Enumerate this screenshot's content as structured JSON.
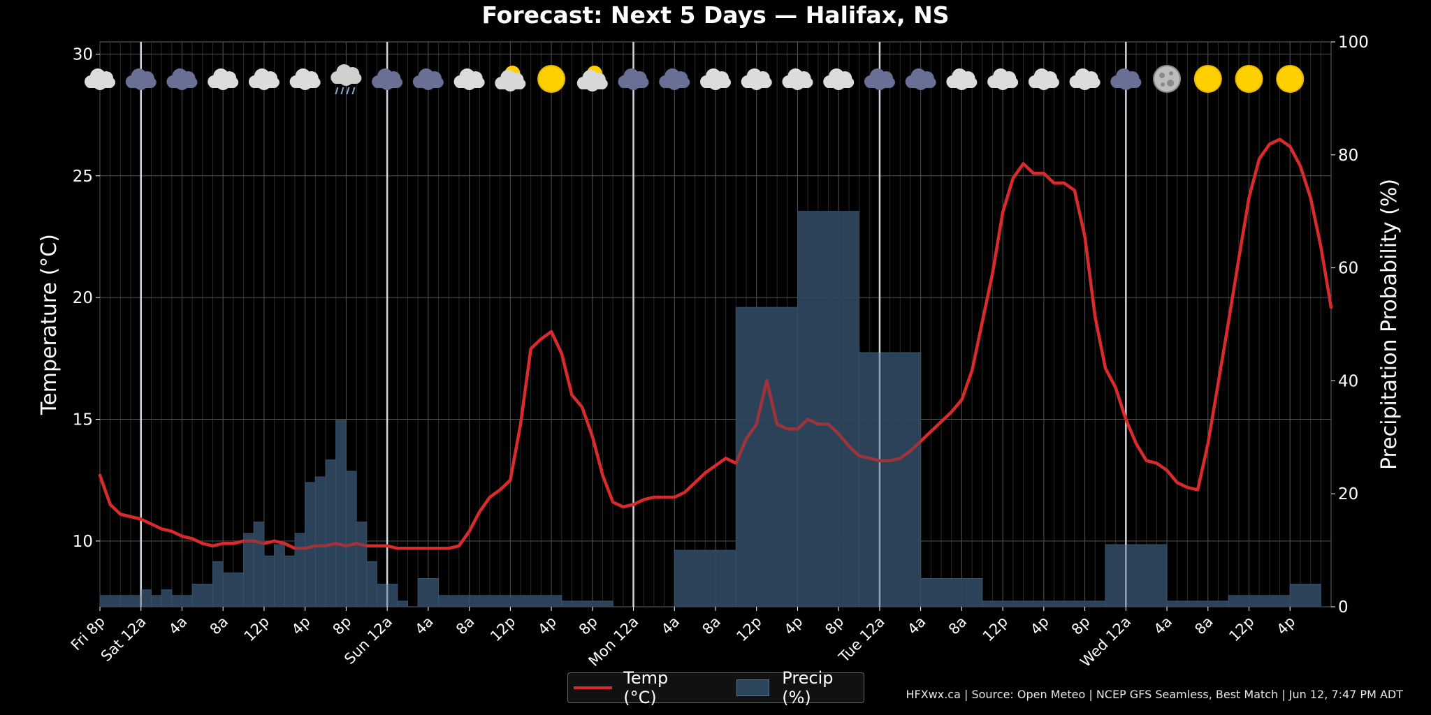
{
  "title": "Forecast: Next 5 Days — Halifax, NS",
  "footer": "HFXwx.ca | Source: Open Meteo | NCEP GFS Seamless, Best Match | Jun 12, 7:47 PM ADT",
  "legend": {
    "temp": "Temp (°C)",
    "precip": "Precip (%)"
  },
  "colors": {
    "temp": "#d92b2b",
    "precip": "#2d455c",
    "grid": "#444444"
  },
  "chart_data": {
    "type": "bar+line",
    "title": "Forecast: Next 5 Days — Halifax, NS",
    "ylabel_left": "Temperature (°C)",
    "ylabel_right": "Precipitation Probability (%)",
    "ylim_left": [
      7.3,
      30.5
    ],
    "ylim_right": [
      0,
      100
    ],
    "yticks_left": [
      "10",
      "15",
      "20",
      "25",
      "30"
    ],
    "yticks_right": [
      "0",
      "20",
      "40",
      "60",
      "80",
      "100"
    ],
    "x_start_hour": 0,
    "x_hours": 120,
    "x_start_label": "Fri 8p",
    "xticks": [
      {
        "h": 0,
        "label": "Fri 8p"
      },
      {
        "h": 4,
        "label": "Sat 12a"
      },
      {
        "h": 8,
        "label": "4a"
      },
      {
        "h": 12,
        "label": "8a"
      },
      {
        "h": 16,
        "label": "12p"
      },
      {
        "h": 20,
        "label": "4p"
      },
      {
        "h": 24,
        "label": "8p"
      },
      {
        "h": 28,
        "label": "Sun 12a"
      },
      {
        "h": 32,
        "label": "4a"
      },
      {
        "h": 36,
        "label": "8a"
      },
      {
        "h": 40,
        "label": "12p"
      },
      {
        "h": 44,
        "label": "4p"
      },
      {
        "h": 48,
        "label": "8p"
      },
      {
        "h": 52,
        "label": "Mon 12a"
      },
      {
        "h": 56,
        "label": "4a"
      },
      {
        "h": 60,
        "label": "8a"
      },
      {
        "h": 64,
        "label": "12p"
      },
      {
        "h": 68,
        "label": "4p"
      },
      {
        "h": 72,
        "label": "8p"
      },
      {
        "h": 76,
        "label": "Tue 12a"
      },
      {
        "h": 80,
        "label": "4a"
      },
      {
        "h": 84,
        "label": "8a"
      },
      {
        "h": 88,
        "label": "12p"
      },
      {
        "h": 92,
        "label": "4p"
      },
      {
        "h": 96,
        "label": "8p"
      },
      {
        "h": 100,
        "label": "Wed 12a"
      },
      {
        "h": 104,
        "label": "4a"
      },
      {
        "h": 108,
        "label": "8a"
      },
      {
        "h": 112,
        "label": "12p"
      },
      {
        "h": 116,
        "label": "4p"
      }
    ],
    "day_boundaries": [
      4,
      28,
      52,
      76,
      100
    ],
    "temperature": [
      [
        0,
        12.7
      ],
      [
        1,
        11.5
      ],
      [
        2,
        11.1
      ],
      [
        3,
        11.0
      ],
      [
        4,
        10.9
      ],
      [
        5,
        10.7
      ],
      [
        6,
        10.5
      ],
      [
        7,
        10.4
      ],
      [
        8,
        10.2
      ],
      [
        9,
        10.1
      ],
      [
        10,
        9.9
      ],
      [
        11,
        9.8
      ],
      [
        12,
        9.9
      ],
      [
        13,
        9.9
      ],
      [
        14,
        10.0
      ],
      [
        15,
        10.0
      ],
      [
        16,
        9.9
      ],
      [
        17,
        10.0
      ],
      [
        18,
        9.9
      ],
      [
        19,
        9.7
      ],
      [
        20,
        9.7
      ],
      [
        21,
        9.8
      ],
      [
        22,
        9.8
      ],
      [
        23,
        9.9
      ],
      [
        24,
        9.8
      ],
      [
        25,
        9.9
      ],
      [
        26,
        9.8
      ],
      [
        27,
        9.8
      ],
      [
        28,
        9.8
      ],
      [
        29,
        9.7
      ],
      [
        30,
        9.7
      ],
      [
        31,
        9.7
      ],
      [
        32,
        9.7
      ],
      [
        33,
        9.7
      ],
      [
        34,
        9.7
      ],
      [
        35,
        9.8
      ],
      [
        36,
        10.4
      ],
      [
        37,
        11.2
      ],
      [
        38,
        11.8
      ],
      [
        39,
        12.1
      ],
      [
        40,
        12.5
      ],
      [
        41,
        14.8
      ],
      [
        42,
        17.9
      ],
      [
        43,
        18.3
      ],
      [
        44,
        18.6
      ],
      [
        45,
        17.7
      ],
      [
        46,
        16.0
      ],
      [
        47,
        15.5
      ],
      [
        48,
        14.3
      ],
      [
        49,
        12.7
      ],
      [
        50,
        11.6
      ],
      [
        51,
        11.4
      ],
      [
        52,
        11.5
      ],
      [
        53,
        11.7
      ],
      [
        54,
        11.8
      ],
      [
        55,
        11.8
      ],
      [
        56,
        11.8
      ],
      [
        57,
        12.0
      ],
      [
        58,
        12.4
      ],
      [
        59,
        12.8
      ],
      [
        60,
        13.1
      ],
      [
        61,
        13.4
      ],
      [
        62,
        13.2
      ],
      [
        63,
        14.2
      ],
      [
        64,
        14.8
      ],
      [
        65,
        16.6
      ],
      [
        66,
        14.8
      ],
      [
        67,
        14.6
      ],
      [
        68,
        14.6
      ],
      [
        69,
        15.0
      ],
      [
        70,
        14.8
      ],
      [
        71,
        14.8
      ],
      [
        72,
        14.4
      ],
      [
        73,
        13.9
      ],
      [
        74,
        13.5
      ],
      [
        75,
        13.4
      ],
      [
        76,
        13.3
      ],
      [
        77,
        13.3
      ],
      [
        78,
        13.4
      ],
      [
        79,
        13.7
      ],
      [
        80,
        14.1
      ],
      [
        81,
        14.5
      ],
      [
        82,
        14.9
      ],
      [
        83,
        15.3
      ],
      [
        84,
        15.8
      ],
      [
        85,
        17.0
      ],
      [
        86,
        19.0
      ],
      [
        87,
        21.0
      ],
      [
        88,
        23.5
      ],
      [
        89,
        24.9
      ],
      [
        90,
        25.5
      ],
      [
        91,
        25.1
      ],
      [
        92,
        25.1
      ],
      [
        93,
        24.7
      ],
      [
        94,
        24.7
      ],
      [
        95,
        24.4
      ],
      [
        96,
        22.5
      ],
      [
        97,
        19.2
      ],
      [
        98,
        17.1
      ],
      [
        99,
        16.3
      ],
      [
        100,
        15.0
      ],
      [
        101,
        14.0
      ],
      [
        102,
        13.3
      ],
      [
        103,
        13.2
      ],
      [
        104,
        12.9
      ],
      [
        105,
        12.4
      ],
      [
        106,
        12.2
      ],
      [
        107,
        12.1
      ],
      [
        108,
        14.0
      ],
      [
        109,
        16.5
      ],
      [
        110,
        19.0
      ],
      [
        111,
        21.6
      ],
      [
        112,
        24.1
      ],
      [
        113,
        25.7
      ],
      [
        114,
        26.3
      ],
      [
        115,
        26.5
      ],
      [
        116,
        26.2
      ],
      [
        117,
        25.4
      ],
      [
        118,
        24.1
      ],
      [
        119,
        22.1
      ],
      [
        120,
        19.6
      ]
    ],
    "precipitation": [
      [
        0,
        2,
        2
      ],
      [
        2,
        4,
        2
      ],
      [
        4,
        5,
        3
      ],
      [
        5,
        6,
        2
      ],
      [
        6,
        7,
        3
      ],
      [
        7,
        9,
        2
      ],
      [
        9,
        11,
        4
      ],
      [
        11,
        12,
        8
      ],
      [
        12,
        14,
        6
      ],
      [
        14,
        15,
        13
      ],
      [
        15,
        16,
        15
      ],
      [
        16,
        17,
        9
      ],
      [
        17,
        18,
        11
      ],
      [
        18,
        19,
        9
      ],
      [
        19,
        20,
        13
      ],
      [
        20,
        21,
        22
      ],
      [
        21,
        22,
        23
      ],
      [
        22,
        23,
        26
      ],
      [
        23,
        24,
        33
      ],
      [
        24,
        25,
        24
      ],
      [
        25,
        26,
        15
      ],
      [
        26,
        27,
        8
      ],
      [
        27,
        28,
        4
      ],
      [
        28,
        29,
        4
      ],
      [
        29,
        30,
        1
      ],
      [
        30,
        31,
        0
      ],
      [
        31,
        33,
        5
      ],
      [
        33,
        36,
        2
      ],
      [
        36,
        45,
        2
      ],
      [
        45,
        50,
        1
      ],
      [
        50,
        56,
        0
      ],
      [
        56,
        62,
        10
      ],
      [
        62,
        68,
        53
      ],
      [
        68,
        74,
        70
      ],
      [
        74,
        80,
        45
      ],
      [
        80,
        86,
        5
      ],
      [
        86,
        98,
        1
      ],
      [
        98,
        104,
        11
      ],
      [
        104,
        110,
        1
      ],
      [
        110,
        116,
        2
      ],
      [
        116,
        119,
        4
      ]
    ],
    "weather_icons": [
      {
        "h": 0,
        "icon": "cloud-icon"
      },
      {
        "h": 4,
        "icon": "dark-cloud-icon"
      },
      {
        "h": 8,
        "icon": "dark-cloud-icon"
      },
      {
        "h": 12,
        "icon": "cloud-icon"
      },
      {
        "h": 16,
        "icon": "cloud-icon"
      },
      {
        "h": 20,
        "icon": "cloud-icon"
      },
      {
        "h": 24,
        "icon": "rain-cloud-icon"
      },
      {
        "h": 28,
        "icon": "dark-cloud-icon"
      },
      {
        "h": 32,
        "icon": "dark-cloud-icon"
      },
      {
        "h": 36,
        "icon": "cloud-icon"
      },
      {
        "h": 40,
        "icon": "partly-sunny-icon"
      },
      {
        "h": 44,
        "icon": "sun-icon"
      },
      {
        "h": 48,
        "icon": "partly-sunny-icon"
      },
      {
        "h": 52,
        "icon": "dark-cloud-icon"
      },
      {
        "h": 56,
        "icon": "dark-cloud-icon"
      },
      {
        "h": 60,
        "icon": "cloud-icon"
      },
      {
        "h": 64,
        "icon": "cloud-icon"
      },
      {
        "h": 68,
        "icon": "cloud-icon"
      },
      {
        "h": 72,
        "icon": "cloud-icon"
      },
      {
        "h": 76,
        "icon": "dark-cloud-icon"
      },
      {
        "h": 80,
        "icon": "dark-cloud-icon"
      },
      {
        "h": 84,
        "icon": "cloud-icon"
      },
      {
        "h": 88,
        "icon": "cloud-icon"
      },
      {
        "h": 92,
        "icon": "cloud-icon"
      },
      {
        "h": 96,
        "icon": "cloud-icon"
      },
      {
        "h": 100,
        "icon": "dark-cloud-icon"
      },
      {
        "h": 104,
        "icon": "moon-icon"
      },
      {
        "h": 108,
        "icon": "sun-icon"
      },
      {
        "h": 112,
        "icon": "sun-icon"
      },
      {
        "h": 116,
        "icon": "sun-icon"
      }
    ]
  }
}
